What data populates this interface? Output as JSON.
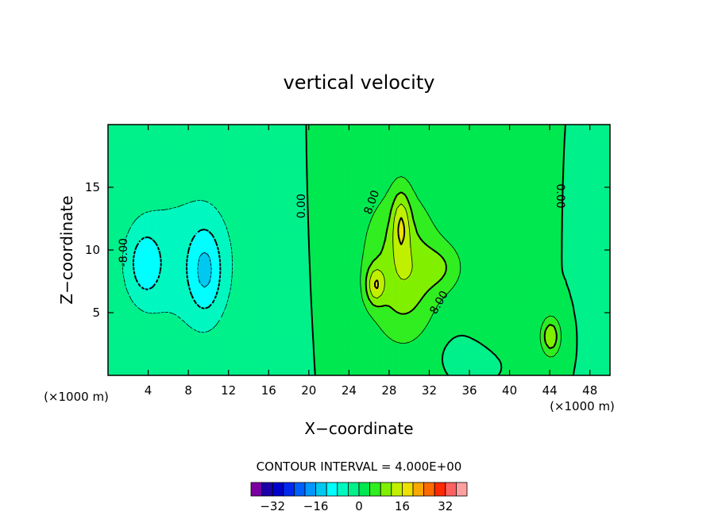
{
  "chart_data": {
    "type": "heatmap",
    "title": "vertical velocity",
    "xlabel": "X−coordinate",
    "ylabel": "Z−coordinate",
    "x_unit": "(×1000 m)",
    "y_unit": "(×1000 m)",
    "xlim": [
      0,
      50
    ],
    "ylim": [
      0,
      20
    ],
    "x_ticks": [
      4,
      8,
      12,
      16,
      20,
      24,
      28,
      32,
      36,
      40,
      44,
      48
    ],
    "x_tick_labels": [
      "4",
      "8",
      "12",
      "16",
      "20",
      "24",
      "28",
      "32",
      "36",
      "40",
      "44",
      "48"
    ],
    "y_ticks": [
      5,
      10,
      15
    ],
    "y_tick_labels": [
      "5",
      "10",
      "15"
    ],
    "contour_interval_label": "CONTOUR INTERVAL = 4.000E+00",
    "contour_interval": 4,
    "contour_labels": [
      {
        "text": "0.00",
        "x": 19.3,
        "z": 13.5,
        "angle": -90
      },
      {
        "text": "8.00",
        "x": 26.3,
        "z": 13.8,
        "angle": -70
      },
      {
        "text": "8.00",
        "x": 33.0,
        "z": 5.8,
        "angle": -60
      },
      {
        "text": "0.00",
        "x": 45.0,
        "z": 14.3,
        "angle": 90
      },
      {
        "text": "-8.00",
        "x": 1.6,
        "z": 9.8,
        "angle": -90
      }
    ],
    "colorbar": {
      "levels": [
        -36,
        -32,
        -28,
        -24,
        -20,
        -16,
        -12,
        -8,
        -4,
        0,
        4,
        8,
        12,
        16,
        20,
        24,
        28,
        32,
        36
      ],
      "colors": [
        "#7a00a0",
        "#1c00a8",
        "#0000cc",
        "#0028ee",
        "#0060ff",
        "#0098ff",
        "#00c8f0",
        "#00ffff",
        "#00f8c0",
        "#00f08a",
        "#00e850",
        "#30ee20",
        "#80f000",
        "#c0f000",
        "#eee000",
        "#f8a800",
        "#ff6a00",
        "#ff2a00",
        "#ff6060",
        "#ffa0a0"
      ],
      "tick_values": [
        -32,
        -16,
        0,
        16,
        32
      ],
      "tick_labels": [
        "−32",
        "−16",
        "0",
        "16",
        "32"
      ]
    },
    "field_features": [
      {
        "sign": "negative",
        "x": 9.5,
        "z": 9.0,
        "peak": -12
      },
      {
        "sign": "negative",
        "x": 3.5,
        "z": 9.0,
        "peak": -12
      },
      {
        "sign": "positive",
        "x": 26.5,
        "z": 7.0,
        "peak": 20
      },
      {
        "sign": "positive",
        "x": 29.5,
        "z": 11.0,
        "peak": 16
      },
      {
        "sign": "positive",
        "x": 44.0,
        "z": 3.0,
        "peak": 12
      }
    ]
  }
}
